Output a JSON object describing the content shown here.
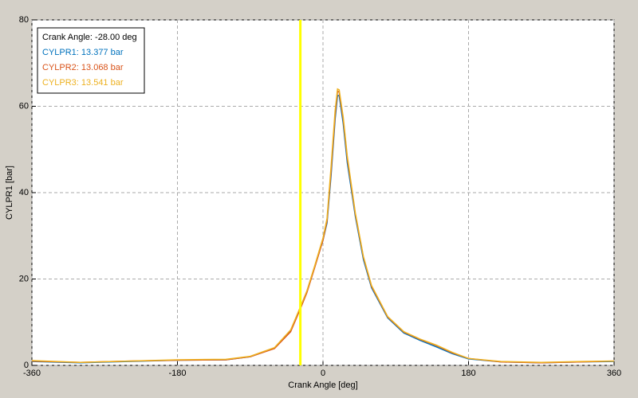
{
  "chart_data": {
    "type": "line",
    "x_label": "Crank Angle [deg]",
    "y_label": "CYLPR1 [bar]",
    "x": [
      -360,
      -300,
      -240,
      -180,
      -120,
      -90,
      -60,
      -40,
      -28,
      -20,
      -10,
      0,
      5,
      10,
      15,
      18,
      20,
      25,
      30,
      40,
      50,
      60,
      80,
      100,
      120,
      140,
      160,
      180,
      220,
      270,
      320,
      360
    ],
    "series": [
      {
        "name": "CYLPR1: 13.377 bar",
        "color": "#0072bd",
        "values": [
          0.9,
          0.6,
          0.9,
          1.2,
          1.3,
          2,
          4,
          8,
          13.4,
          17,
          23,
          29,
          33,
          44,
          57,
          62.5,
          62.5,
          56,
          47,
          34.5,
          24.5,
          18,
          11,
          7.5,
          5.8,
          4.3,
          2.7,
          1.5,
          0.8,
          0.6,
          0.8,
          0.9
        ]
      },
      {
        "name": "CYLPR2: 13.068 bar",
        "color": "#d95319",
        "values": [
          1,
          0.7,
          1,
          1.2,
          1.3,
          2,
          3.9,
          7.8,
          13.1,
          16.8,
          22.8,
          29,
          33.5,
          45,
          58,
          63.5,
          63.3,
          57,
          48,
          35,
          25,
          18.3,
          11.2,
          7.7,
          6,
          4.6,
          2.9,
          1.6,
          0.8,
          0.6,
          0.8,
          1
        ]
      },
      {
        "name": "CYLPR3: 13.541 bar",
        "color": "#edb120",
        "values": [
          1.1,
          0.7,
          1,
          1.3,
          1.4,
          2.1,
          4.1,
          8.2,
          13.5,
          17.2,
          23.2,
          29.5,
          34,
          46,
          59,
          64,
          63.8,
          57.5,
          48.5,
          35.3,
          25.2,
          18.5,
          11.3,
          7.8,
          6.1,
          4.7,
          3,
          1.6,
          0.9,
          0.7,
          0.9,
          1
        ]
      }
    ],
    "cursor": {
      "x": -28,
      "label": "Crank Angle: -28.00 deg",
      "color": "#ffff00"
    },
    "xlim": [
      -360,
      360
    ],
    "ylim": [
      0,
      80
    ],
    "xticks": [
      -360,
      -180,
      0,
      180,
      360
    ],
    "yticks": [
      0,
      20,
      40,
      60,
      80
    ],
    "grid": true
  }
}
